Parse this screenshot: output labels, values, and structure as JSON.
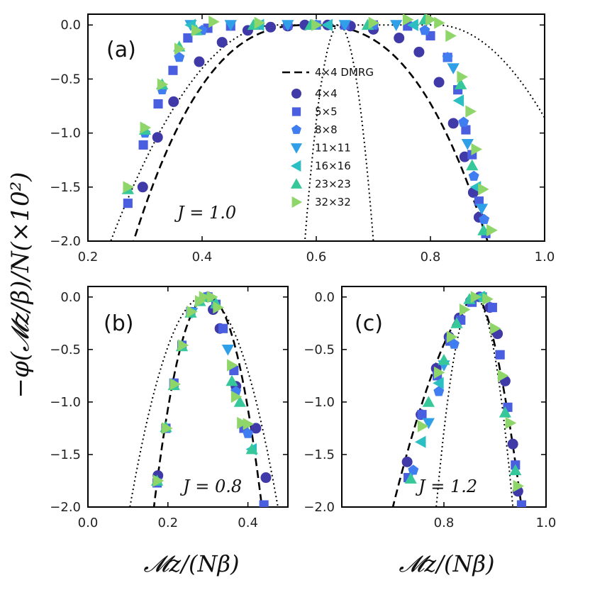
{
  "figure": {
    "ylabel": "−φ(𝓜z/β)/N(×10²)",
    "xlabel": "𝓜z/(Nβ)"
  },
  "legend": {
    "dmrg_label": "4×4 DMRG",
    "entries": [
      {
        "label": "4×4",
        "marker": "circle",
        "color": "#3f3aa8"
      },
      {
        "label": "5×5",
        "marker": "square",
        "color": "#4a5ee0"
      },
      {
        "label": "8×8",
        "marker": "pentagon",
        "color": "#3f7df0"
      },
      {
        "label": "11×11",
        "marker": "triangle-down",
        "color": "#2f9fe8"
      },
      {
        "label": "16×16",
        "marker": "triangle-left",
        "color": "#2bbfc4"
      },
      {
        "label": "23×23",
        "marker": "triangle-up",
        "color": "#36c89a"
      },
      {
        "label": "32×32",
        "marker": "triangle-right",
        "color": "#8fd66a"
      }
    ]
  },
  "chart_data": [
    {
      "type": "scatter",
      "panel": "(a)",
      "annotation": "J = 1.0",
      "xlim": [
        0.2,
        1.0
      ],
      "ylim": [
        -2.0,
        0.1
      ],
      "xticks": [
        "0.2",
        "0.4",
        "0.6",
        "0.8",
        "1.0"
      ],
      "yticks": [
        "0.0",
        "-0.5",
        "-1.0",
        "-1.5",
        "-2.0"
      ],
      "dmrg_curve": {
        "center": 0.59,
        "halfwidth_at_minus2": 0.31,
        "power": 2.6
      },
      "dotted_curves": [
        {
          "center": 0.53,
          "flat_to": 0.81,
          "halfwidth_at_minus2": 0.29,
          "power": 2.0
        },
        {
          "center": 0.64,
          "halfwidth_at_minus2": 0.06,
          "power": 2.0
        }
      ],
      "series": [
        {
          "name": "4×4",
          "x": [
            0.296,
            0.322,
            0.35,
            0.395,
            0.435,
            0.48,
            0.52,
            0.55,
            0.58,
            0.62,
            0.66,
            0.7,
            0.745,
            0.78,
            0.815,
            0.84,
            0.86,
            0.875,
            0.885
          ],
          "y": [
            -1.5,
            -1.04,
            -0.71,
            -0.34,
            -0.16,
            -0.05,
            -0.02,
            -0.01,
            0.0,
            0.0,
            -0.01,
            -0.04,
            -0.12,
            -0.25,
            -0.53,
            -0.91,
            -1.22,
            -1.55,
            -1.78
          ]
        },
        {
          "name": "5×5",
          "x": [
            0.27,
            0.297,
            0.323,
            0.349,
            0.375,
            0.41,
            0.45,
            0.5,
            0.55,
            0.6,
            0.65,
            0.7,
            0.76,
            0.8,
            0.83,
            0.848,
            0.862,
            0.873,
            0.885,
            0.897
          ],
          "y": [
            -1.65,
            -1.11,
            -0.73,
            -0.42,
            -0.12,
            -0.03,
            -0.01,
            0.0,
            0.0,
            0.0,
            0.0,
            0.0,
            -0.01,
            -0.1,
            -0.3,
            -0.6,
            -0.97,
            -1.2,
            -1.63,
            -1.93
          ]
        },
        {
          "name": "8×8",
          "x": [
            0.3,
            0.33,
            0.36,
            0.4,
            0.5,
            0.6,
            0.7,
            0.79,
            0.83,
            0.858,
            0.876,
            0.894
          ],
          "y": [
            -1.0,
            -0.6,
            -0.3,
            -0.05,
            0.0,
            0.0,
            0.0,
            -0.05,
            -0.3,
            -0.9,
            -1.4,
            -1.8
          ]
        },
        {
          "name": "11×11",
          "x": [
            0.38,
            0.45,
            0.55,
            0.65,
            0.74,
            0.84,
            0.865,
            0.89
          ],
          "y": [
            0.0,
            0.0,
            0.0,
            0.0,
            0.0,
            -0.4,
            -1.1,
            -1.7
          ]
        },
        {
          "name": "16×16",
          "x": [
            0.38,
            0.5,
            0.62,
            0.77,
            0.85,
            0.88
          ],
          "y": [
            0.0,
            0.0,
            0.0,
            0.0,
            -0.7,
            -1.5
          ]
        },
        {
          "name": "23×23",
          "x": [
            0.27,
            0.3,
            0.33,
            0.36,
            0.39,
            0.49,
            0.59,
            0.69,
            0.79,
            0.853,
            0.873,
            0.893
          ],
          "y": [
            -1.52,
            -0.97,
            -0.55,
            -0.2,
            -0.05,
            0.0,
            0.0,
            0.0,
            0.05,
            -0.55,
            -1.3,
            -1.9
          ]
        },
        {
          "name": "32×32",
          "x": [
            0.27,
            0.3,
            0.33,
            0.36,
            0.39,
            0.42,
            0.5,
            0.6,
            0.7,
            0.76,
            0.8,
            0.815,
            0.835,
            0.855,
            0.87,
            0.88,
            0.892,
            0.907
          ],
          "y": [
            -1.5,
            -0.95,
            -0.55,
            -0.22,
            -0.05,
            0.03,
            0.02,
            0.0,
            0.02,
            0.05,
            0.05,
            0.02,
            -0.1,
            -0.48,
            -0.8,
            -1.15,
            -1.52,
            -1.9
          ]
        }
      ]
    },
    {
      "type": "scatter",
      "panel": "(b)",
      "annotation": "J = 0.8",
      "xlim": [
        0.0,
        0.5
      ],
      "ylim": [
        -2.0,
        0.1
      ],
      "xticks": [
        "0.0",
        "0.2",
        "0.4"
      ],
      "yticks": [
        "0.0",
        "-0.5",
        "-1.0",
        "-1.5",
        "-2.0"
      ],
      "dmrg_curve": {
        "center": 0.3,
        "halfwidth_at_minus2": 0.135,
        "power": 2.1
      },
      "dotted_curves": [
        {
          "center": 0.29,
          "halfwidth_at_minus2": 0.185,
          "power": 2.0
        }
      ],
      "series": [
        {
          "name": "4×4",
          "x": [
            0.175,
            0.3,
            0.313,
            0.33,
            0.37,
            0.42,
            0.445
          ],
          "y": [
            -1.7,
            0.0,
            -0.12,
            -0.3,
            -0.85,
            -1.25,
            -1.72
          ]
        },
        {
          "name": "5×5",
          "x": [
            0.173,
            0.195,
            0.215,
            0.235,
            0.257,
            0.3,
            0.32,
            0.338,
            0.365,
            0.39,
            0.44
          ],
          "y": [
            -1.77,
            -1.25,
            -0.82,
            -0.46,
            -0.14,
            0.0,
            -0.07,
            -0.3,
            -0.7,
            -1.25,
            -1.98
          ]
        },
        {
          "name": "8×8",
          "x": [
            0.3,
            0.37,
            0.4
          ],
          "y": [
            0.0,
            -0.9,
            -1.3
          ]
        },
        {
          "name": "11×11",
          "x": [
            0.26,
            0.35
          ],
          "y": [
            -0.15,
            -0.5
          ]
        },
        {
          "name": "16×16",
          "x": [
            0.41
          ],
          "y": [
            -1.45
          ]
        },
        {
          "name": "23×23",
          "x": [
            0.173,
            0.195,
            0.215,
            0.235,
            0.257,
            0.28,
            0.3,
            0.32,
            0.36,
            0.38,
            0.41
          ],
          "y": [
            -1.75,
            -1.24,
            -0.84,
            -0.47,
            -0.15,
            -0.04,
            0.0,
            -0.06,
            -0.8,
            -1.0,
            -1.45
          ]
        },
        {
          "name": "32×32",
          "x": [
            0.175,
            0.197,
            0.217,
            0.237,
            0.259,
            0.28,
            0.29,
            0.31,
            0.325,
            0.36,
            0.37,
            0.385,
            0.4
          ],
          "y": [
            -1.75,
            -1.25,
            -0.83,
            -0.46,
            -0.14,
            -0.04,
            0.0,
            0.0,
            -0.1,
            -0.65,
            -0.95,
            -1.2,
            -1.21
          ]
        }
      ]
    },
    {
      "type": "scatter",
      "panel": "(c)",
      "annotation": "J = 1.2",
      "xlim": [
        0.6,
        1.0
      ],
      "ylim": [
        -2.0,
        0.1
      ],
      "xticks": [
        "0.8",
        "1.0"
      ],
      "yticks": [
        "0.0",
        "-0.5",
        "-1.0",
        "-1.5",
        "-2.0"
      ],
      "dmrg_curve": {
        "center": 0.865,
        "halfwidth_at_minus2": 0.165,
        "right_halfwidth": 0.087,
        "power": 1.6
      },
      "dotted_curves": [
        {
          "center": 0.86,
          "halfwidth_at_minus2": 0.075,
          "power": 2.0
        }
      ],
      "series": [
        {
          "name": "4×4",
          "x": [
            0.728,
            0.755,
            0.785,
            0.81,
            0.83,
            0.852,
            0.87,
            0.89,
            0.905,
            0.92,
            0.935,
            0.945
          ],
          "y": [
            -1.57,
            -1.12,
            -0.68,
            -0.38,
            -0.2,
            -0.04,
            0.0,
            -0.1,
            -0.35,
            -0.8,
            -1.4,
            -1.85
          ]
        },
        {
          "name": "5×5",
          "x": [
            0.73,
            0.757,
            0.787,
            0.812,
            0.833,
            0.855,
            0.875,
            0.895,
            0.91,
            0.925,
            0.94,
            0.952
          ],
          "y": [
            -1.72,
            -1.12,
            -0.75,
            -0.42,
            -0.22,
            -0.05,
            0.0,
            -0.1,
            -0.55,
            -1.05,
            -1.6,
            -1.98
          ]
        },
        {
          "name": "8×8",
          "x": [
            0.74,
            0.79,
            0.82
          ],
          "y": [
            -1.65,
            -0.9,
            -0.45
          ]
        },
        {
          "name": "11×11",
          "x": [
            0.77,
            0.8
          ],
          "y": [
            -1.2,
            -0.65
          ]
        },
        {
          "name": "16×16",
          "x": [
            0.755,
            0.79,
            0.87
          ],
          "y": [
            -1.38,
            -0.82,
            0.0
          ]
        },
        {
          "name": "23×23",
          "x": [
            0.735,
            0.77,
            0.8,
            0.825,
            0.85,
            0.88,
            0.92,
            0.94
          ],
          "y": [
            -1.73,
            -1.0,
            -0.6,
            -0.25,
            -0.02,
            0.0,
            -1.1,
            -1.65
          ]
        },
        {
          "name": "32×32",
          "x": [
            0.758,
            0.79,
            0.815,
            0.84,
            0.862,
            0.885,
            0.9,
            0.915,
            0.93,
            0.945
          ],
          "y": [
            -1.23,
            -0.72,
            -0.38,
            -0.12,
            0.0,
            -0.02,
            -0.3,
            -0.75,
            -1.2,
            -1.8
          ]
        }
      ]
    }
  ]
}
